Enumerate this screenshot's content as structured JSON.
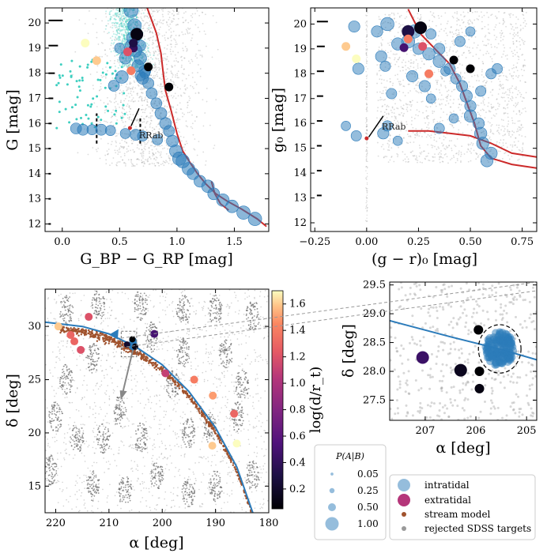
{
  "colors": {
    "isochrone": "#cc2a2a",
    "intratidal": "#2b7bba",
    "extratidal": "#b5367a",
    "stream_model": "#a0522d",
    "rejected": "#9a9a9a",
    "gaia_cyan": "#3ecfc0",
    "orbit": "#2b7bba"
  },
  "chart_data": [
    {
      "id": "gaia_cmd",
      "type": "scatter",
      "xlabel": "G_BP − G_RP [mag]",
      "ylabel": "G [mag]",
      "xlim": [
        -0.15,
        1.8
      ],
      "ylim": [
        20.6,
        11.7
      ],
      "xticks": [
        "0.0",
        "0.5",
        "1.0",
        "1.5"
      ],
      "xtick_values": [
        0.0,
        0.5,
        1.0,
        1.5
      ],
      "yticks": [
        "12",
        "13",
        "14",
        "15",
        "16",
        "17",
        "18",
        "19",
        "20"
      ],
      "ytick_values": [
        12,
        13,
        14,
        15,
        16,
        17,
        18,
        19,
        20
      ],
      "annotation": "RRab",
      "isochrone": [
        [
          0.74,
          20.6
        ],
        [
          0.82,
          19.6
        ],
        [
          0.86,
          18.8
        ],
        [
          0.88,
          18.0
        ],
        [
          0.9,
          17.3
        ],
        [
          0.95,
          16.5
        ],
        [
          1.0,
          15.6
        ],
        [
          1.05,
          14.9
        ],
        [
          1.12,
          14.4
        ],
        [
          1.18,
          14.0
        ],
        [
          1.25,
          13.6
        ],
        [
          1.34,
          13.2
        ],
        [
          1.44,
          12.9
        ],
        [
          1.56,
          12.6
        ],
        [
          1.7,
          12.2
        ],
        [
          1.78,
          11.9
        ]
      ],
      "agb": [
        [
          1.45,
          12.55
        ],
        [
          1.38,
          12.8
        ],
        [
          1.33,
          13.2
        ],
        [
          1.3,
          13.7
        ]
      ],
      "members": [
        [
          0.6,
          20.5,
          1.0
        ],
        [
          0.63,
          19.9,
          0.9
        ],
        [
          0.62,
          19.4,
          0.9
        ],
        [
          0.64,
          18.9,
          0.8
        ],
        [
          0.68,
          18.6,
          0.8
        ],
        [
          0.66,
          18.3,
          0.7
        ],
        [
          0.72,
          18.1,
          0.7
        ],
        [
          0.7,
          17.8,
          0.7
        ],
        [
          0.75,
          17.6,
          0.6
        ],
        [
          0.78,
          17.2,
          0.6
        ],
        [
          0.82,
          16.8,
          0.6
        ],
        [
          0.86,
          16.4,
          0.7
        ],
        [
          0.9,
          16.0,
          0.7
        ],
        [
          0.93,
          15.7,
          0.6
        ],
        [
          0.96,
          15.3,
          0.7
        ],
        [
          0.99,
          14.9,
          0.8
        ],
        [
          1.02,
          14.6,
          0.9
        ],
        [
          1.05,
          14.5,
          0.9
        ],
        [
          1.1,
          14.2,
          0.8
        ],
        [
          1.14,
          14.0,
          0.7
        ],
        [
          1.2,
          13.7,
          0.7
        ],
        [
          1.27,
          13.5,
          0.8
        ],
        [
          1.32,
          13.2,
          0.7
        ],
        [
          1.4,
          12.95,
          0.8
        ],
        [
          1.48,
          12.7,
          0.8
        ],
        [
          1.58,
          12.45,
          0.9
        ],
        [
          1.68,
          12.2,
          0.9
        ],
        [
          0.72,
          18.0,
          0.5
        ],
        [
          0.68,
          19.1,
          0.6
        ],
        [
          0.65,
          19.6,
          0.5
        ],
        [
          0.12,
          15.8,
          0.6
        ],
        [
          0.18,
          15.75,
          0.6
        ],
        [
          0.26,
          15.75,
          0.5
        ],
        [
          0.34,
          15.75,
          0.6
        ],
        [
          0.42,
          15.72,
          0.5
        ],
        [
          0.55,
          15.6,
          0.5
        ],
        [
          0.64,
          15.55,
          0.6
        ],
        [
          0.7,
          15.5,
          0.5
        ],
        [
          0.83,
          15.35,
          0.5
        ],
        [
          0.52,
          17.85,
          0.8
        ],
        [
          0.45,
          17.5,
          0.6
        ],
        [
          0.55,
          18.6,
          0.7
        ],
        [
          0.6,
          19.1,
          0.7
        ],
        [
          0.5,
          19.0,
          0.5
        ],
        [
          0.68,
          17.9,
          0.5
        ]
      ],
      "extratidal": [
        [
          0.3,
          18.5,
          1.6
        ],
        [
          0.2,
          19.2,
          1.8
        ],
        [
          0.6,
          18.1,
          1.4
        ],
        [
          0.62,
          19.0,
          0.4
        ],
        [
          0.65,
          19.55,
          0.1
        ],
        [
          0.75,
          18.25,
          0.05
        ],
        [
          0.93,
          17.45,
          0.05
        ],
        [
          0.62,
          19.2,
          0.3
        ],
        [
          0.57,
          18.85,
          1.2
        ]
      ]
    },
    {
      "id": "sdss_cmd",
      "type": "scatter",
      "xlabel": "(g − r)₀ [mag]",
      "ylabel": "g₀ [mag]",
      "xlim": [
        -0.27,
        0.82
      ],
      "ylim": [
        20.65,
        11.65
      ],
      "xticks": [
        "−0.25",
        "0.00",
        "0.25",
        "0.50",
        "0.75"
      ],
      "xtick_values": [
        -0.25,
        0.0,
        0.25,
        0.5,
        0.75
      ],
      "yticks": [
        "12",
        "13",
        "14",
        "15",
        "16",
        "17",
        "18",
        "19",
        "20"
      ],
      "ytick_values": [
        12,
        13,
        14,
        15,
        16,
        17,
        18,
        19,
        20
      ],
      "annotation": "RRab",
      "members": [
        [
          0.58,
          14.5,
          0.8
        ],
        [
          0.6,
          14.8,
          0.8
        ],
        [
          0.56,
          15.2,
          0.8
        ],
        [
          0.55,
          15.6,
          0.8
        ],
        [
          0.54,
          16.0,
          0.7
        ],
        [
          0.5,
          16.3,
          0.8
        ],
        [
          0.5,
          16.7,
          0.7
        ],
        [
          0.48,
          17.1,
          0.8
        ],
        [
          0.46,
          17.5,
          0.7
        ],
        [
          0.43,
          17.8,
          0.6
        ],
        [
          0.4,
          18.2,
          0.7
        ],
        [
          0.35,
          18.5,
          0.8
        ],
        [
          0.3,
          18.8,
          0.8
        ],
        [
          0.25,
          19.0,
          0.7
        ],
        [
          0.2,
          19.3,
          0.9
        ],
        [
          0.23,
          19.7,
          0.9
        ],
        [
          0.1,
          20.0,
          0.9
        ],
        [
          0.05,
          19.7,
          0.7
        ],
        [
          0.08,
          15.6,
          0.7
        ],
        [
          0.1,
          15.9,
          0.6
        ],
        [
          0.15,
          15.3,
          0.5
        ],
        [
          -0.05,
          15.5,
          0.6
        ],
        [
          -0.1,
          15.9,
          0.5
        ],
        [
          0.35,
          15.8,
          0.6
        ],
        [
          -0.04,
          18.2,
          0.7
        ],
        [
          0.12,
          17.2,
          0.6
        ],
        [
          0.28,
          17.5,
          0.7
        ],
        [
          0.55,
          17.3,
          0.6
        ],
        [
          0.6,
          18.0,
          0.6
        ],
        [
          0.63,
          18.2,
          0.6
        ],
        [
          0.07,
          18.7,
          0.7
        ],
        [
          0.15,
          19.2,
          0.8
        ],
        [
          0.31,
          19.6,
          0.6
        ],
        [
          0.35,
          19.0,
          0.7
        ],
        [
          0.45,
          19.3,
          0.6
        ],
        [
          0.5,
          19.7,
          0.5
        ],
        [
          0.09,
          18.3,
          0.6
        ],
        [
          -0.06,
          19.9,
          0.7
        ],
        [
          0.22,
          17.9,
          0.7
        ],
        [
          0.31,
          17.0,
          0.5
        ],
        [
          0.42,
          16.2,
          0.5
        ],
        [
          0.38,
          18.1,
          0.5
        ]
      ],
      "extratidal": [
        [
          -0.05,
          18.6,
          1.8
        ],
        [
          -0.1,
          19.1,
          1.6
        ],
        [
          0.3,
          18.0,
          1.4
        ],
        [
          0.27,
          19.1,
          1.2
        ],
        [
          0.18,
          19.05,
          0.5
        ],
        [
          0.2,
          19.7,
          0.3
        ],
        [
          0.26,
          19.85,
          0.1
        ],
        [
          0.42,
          18.55,
          0.05
        ],
        [
          0.5,
          18.2,
          0.05
        ],
        [
          0.2,
          19.4,
          1.4
        ]
      ]
    },
    {
      "id": "sky_map",
      "type": "scatter",
      "xlabel": "α [deg]",
      "ylabel": "δ [deg]",
      "xlim": [
        222,
        180
      ],
      "ylim": [
        12.5,
        33.5
      ],
      "xticks": [
        "220",
        "210",
        "200",
        "190",
        "180"
      ],
      "xtick_values": [
        220,
        210,
        200,
        190,
        180
      ],
      "yticks": [
        "15",
        "20",
        "25",
        "30"
      ],
      "ytick_values": [
        15,
        20,
        25,
        30
      ],
      "orbit": [
        [
          222,
          30.4
        ],
        [
          215,
          30.0
        ],
        [
          210,
          29.3
        ],
        [
          205,
          28.1
        ],
        [
          200,
          26.4
        ],
        [
          195,
          23.9
        ],
        [
          190,
          20.5
        ],
        [
          186,
          16.8
        ],
        [
          183,
          12.5
        ]
      ],
      "cluster_center": [
        205.5,
        28.38
      ],
      "points": [
        [
          219.5,
          30.0,
          1.6
        ],
        [
          217.2,
          29.2,
          1.3
        ],
        [
          216.5,
          28.6,
          1.3
        ],
        [
          215.3,
          27.8,
          1.2
        ],
        [
          213.8,
          30.9,
          1.2
        ],
        [
          201.5,
          29.3,
          0.5
        ],
        [
          199.4,
          25.6,
          1.1
        ],
        [
          194,
          25.0,
          1.4
        ],
        [
          190.5,
          23.5,
          1.5
        ],
        [
          190.6,
          18.8,
          1.6
        ],
        [
          186,
          19.0,
          1.7
        ],
        [
          186.5,
          21.8,
          1.3
        ],
        [
          205.6,
          28.8,
          0.05
        ],
        [
          205.1,
          28.1,
          0.1
        ],
        [
          206.6,
          28.3,
          0.2
        ]
      ],
      "colorbar": {
        "label": "log(d/r_t)",
        "ticks": [
          "0.2",
          "0.4",
          "0.6",
          "0.8",
          "1.0",
          "1.2",
          "1.4",
          "1.6"
        ],
        "tick_values": [
          0.2,
          0.4,
          0.6,
          0.8,
          1.0,
          1.2,
          1.4,
          1.6
        ],
        "range": [
          0.05,
          1.7
        ]
      }
    },
    {
      "id": "sky_zoom",
      "type": "scatter",
      "xlabel": "α [deg]",
      "ylabel": "δ [deg]",
      "xlim": [
        207.7,
        204.8
      ],
      "ylim": [
        27.15,
        29.55
      ],
      "xticks": [
        "207",
        "206",
        "205"
      ],
      "xtick_values": [
        207,
        206,
        205
      ],
      "yticks": [
        "27.5",
        "28.0",
        "28.5",
        "29.0",
        "29.5"
      ],
      "ytick_values": [
        27.5,
        28.0,
        28.5,
        29.0,
        29.5
      ],
      "orbit": [
        [
          207.7,
          28.88
        ],
        [
          206.5,
          28.6
        ],
        [
          205.5,
          28.38
        ],
        [
          204.8,
          28.2
        ]
      ],
      "cluster_center": [
        205.53,
        28.39
      ],
      "tidal_radius_deg": 0.42,
      "points": [
        [
          205.95,
          28.72,
          0.05
        ],
        [
          205.93,
          28.0,
          0.05
        ],
        [
          205.93,
          27.7,
          0.1
        ],
        [
          206.3,
          28.02,
          0.15
        ],
        [
          207.05,
          28.24,
          0.45
        ]
      ]
    }
  ],
  "legend_size": {
    "title": "P(A|B)",
    "entries": [
      "0.05",
      "0.25",
      "0.50",
      "1.00"
    ],
    "values": [
      0.05,
      0.25,
      0.5,
      1.0
    ]
  },
  "legend_types": {
    "entries": [
      "intratidal",
      "extratidal",
      "stream model",
      "rejected SDSS targets"
    ]
  }
}
